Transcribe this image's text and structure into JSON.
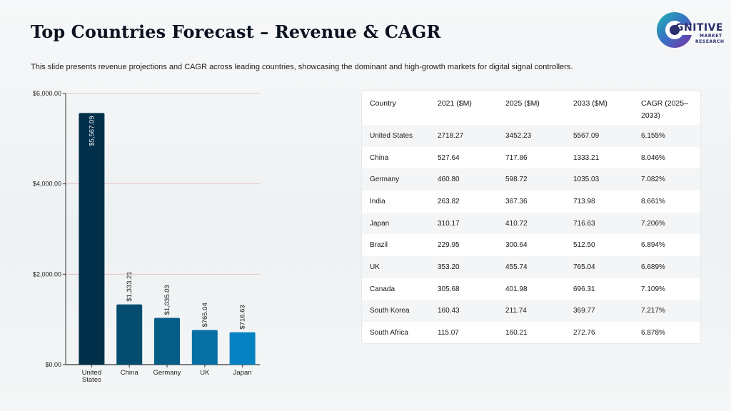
{
  "header": {
    "title": "Top Countries Forecast – Revenue & CAGR",
    "subtitle": "This slide presents revenue projections and CAGR across leading countries, showcasing the dominant and high-growth markets for digital signal controllers."
  },
  "logo": {
    "word": "GNITIVE",
    "line1": "MARKET",
    "line2": "RESEARCH",
    "icon": "cognitive-logo-icon"
  },
  "colors": {
    "bars": [
      "#02304a",
      "#044d6e",
      "#065d88",
      "#0670a4",
      "#0582c2"
    ],
    "gridline": "#e4c3c8",
    "axis": "#333333"
  },
  "chart_data": {
    "type": "bar",
    "categories": [
      "United States",
      "China",
      "Germany",
      "UK",
      "Japan"
    ],
    "category_lines": [
      [
        "United",
        "States"
      ],
      [
        "China"
      ],
      [
        "Germany"
      ],
      [
        "UK"
      ],
      [
        "Japan"
      ]
    ],
    "values": [
      5567.09,
      1333.21,
      1035.03,
      765.04,
      716.63
    ],
    "value_labels": [
      "$5,567.09",
      "$1,333.21",
      "$1,035.03",
      "$765.04",
      "$716.63"
    ],
    "ylim": [
      0,
      6000
    ],
    "yticks": [
      0,
      2000,
      4000,
      6000
    ],
    "ytick_labels": [
      "$0.00",
      "$2,000.00",
      "$4,000.00",
      "$6,000.00"
    ],
    "grid": true,
    "xlabel": "",
    "ylabel": ""
  },
  "table": {
    "headers": [
      "Country",
      "2021 ($M)",
      "2025 ($M)",
      "2033 ($M)",
      "CAGR (2025–\n2033)"
    ],
    "rows": [
      [
        "United States",
        "2718.27",
        "3452.23",
        "5567.09",
        "6.155%"
      ],
      [
        "China",
        "527.64",
        "717.86",
        "1333.21",
        "8.046%"
      ],
      [
        "Germany",
        "460.80",
        "598.72",
        "1035.03",
        "7.082%"
      ],
      [
        "India",
        "263.82",
        "367.36",
        "713.98",
        "8.661%"
      ],
      [
        "Japan",
        "310.17",
        "410.72",
        "716.63",
        "7.206%"
      ],
      [
        "Brazil",
        "229.95",
        "300.64",
        "512.50",
        "6.894%"
      ],
      [
        "UK",
        "353.20",
        "455.74",
        "765.04",
        "6.689%"
      ],
      [
        "Canada",
        "305.68",
        "401.98",
        "696.31",
        "7.109%"
      ],
      [
        "South Korea",
        "160.43",
        "211.74",
        "369.77",
        "7.217%"
      ],
      [
        "South Africa",
        "115.07",
        "160.21",
        "272.76",
        "6.878%"
      ]
    ]
  }
}
